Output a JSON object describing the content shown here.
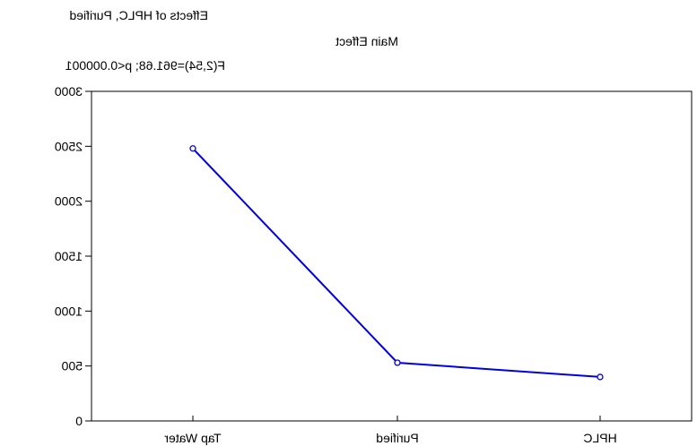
{
  "header": {
    "title": "Effects of HPLC, Purified",
    "subtitle": "Main Effect",
    "stats": "F(2,54)=961.68; p<0.000001"
  },
  "chart_data": {
    "type": "line",
    "categories": [
      "HPLC",
      "Purified",
      "Tap Water"
    ],
    "series": [
      {
        "values": [
          400,
          530,
          2480
        ],
        "color": "#0000e0"
      }
    ],
    "ylim": [
      0,
      3000
    ],
    "yticks": [
      0,
      500,
      1000,
      1500,
      2000,
      2500,
      3000
    ],
    "ylabel": "",
    "grid": false,
    "legend": "none"
  }
}
